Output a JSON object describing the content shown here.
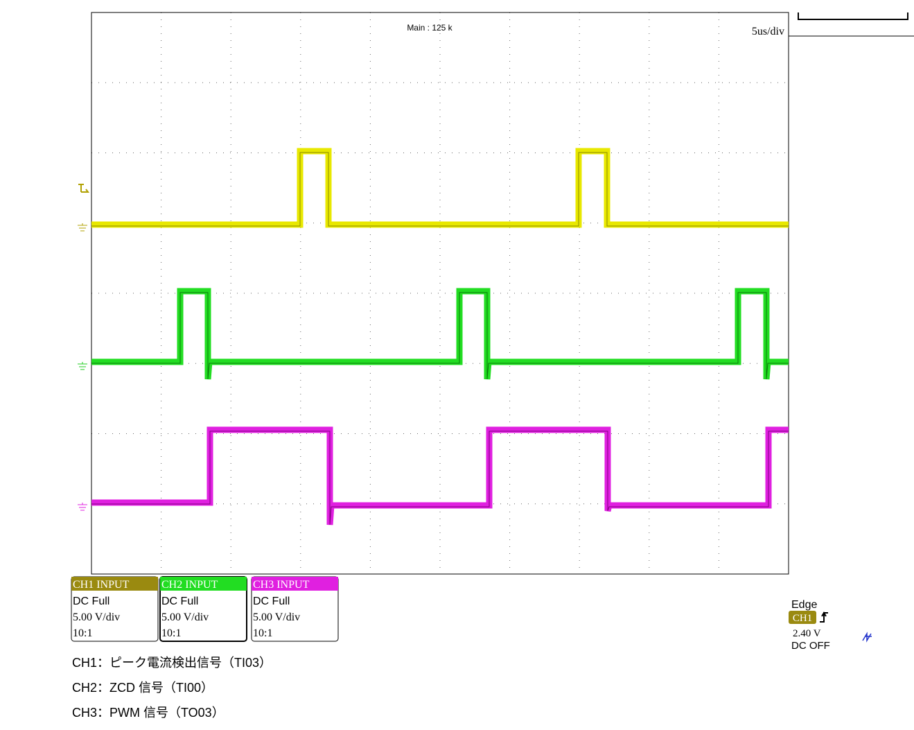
{
  "header": {
    "timebase_info": "Main : 125 k",
    "scale": "5us/div"
  },
  "channels": [
    {
      "label": "CH1 INPUT",
      "coupling": "DC Full",
      "scale": "5.00 V/div",
      "probe": "10:1"
    },
    {
      "label": "CH2 INPUT",
      "coupling": "DC Full",
      "scale": "5.00 V/div",
      "probe": "10:1"
    },
    {
      "label": "CH3 INPUT",
      "coupling": "DC Full",
      "scale": "5.00 V/div",
      "probe": "10:1"
    }
  ],
  "trigger": {
    "mode": "Edge",
    "source": "CH1",
    "level": "2.40 V",
    "status": "DC OFF"
  },
  "captions": [
    "CH1：ピーク電流検出信号（TI03）",
    "CH2：ZCD 信号（TI00）",
    "CH3：PWM 信号（TO03）"
  ]
}
